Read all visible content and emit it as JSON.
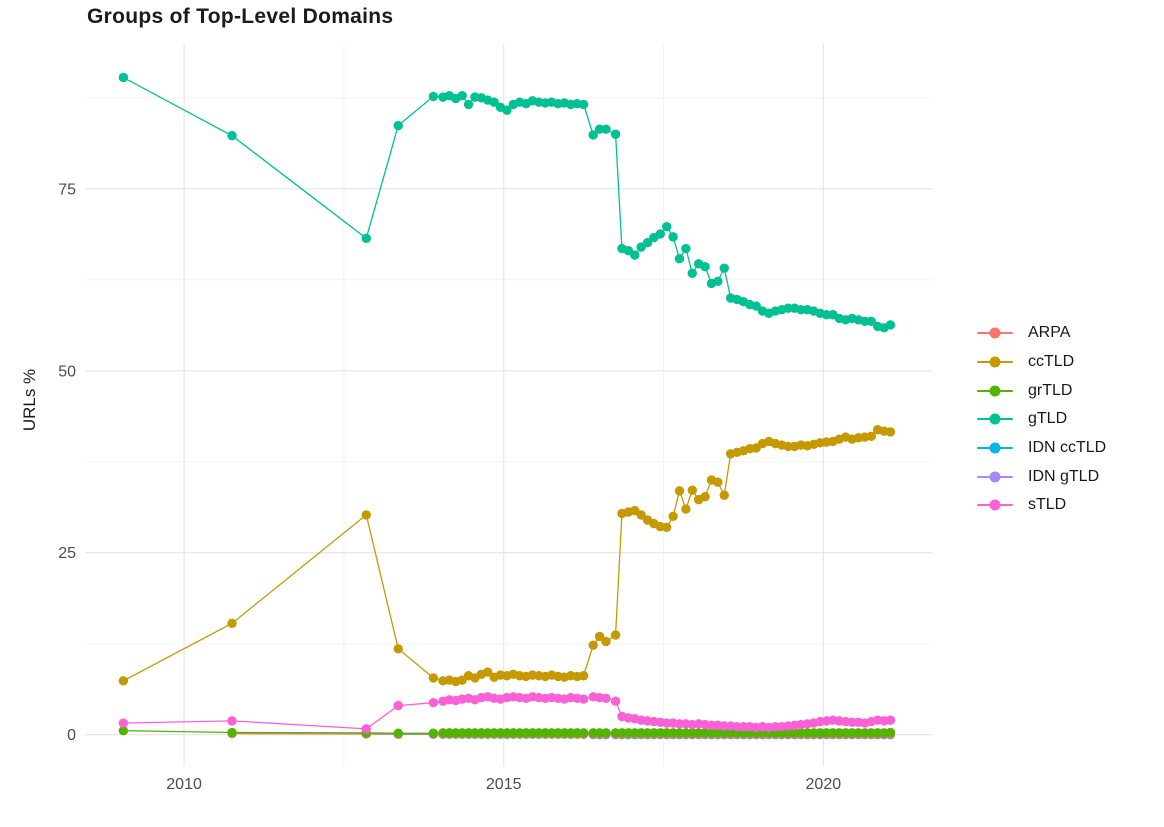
{
  "chart_data": {
    "type": "line",
    "title": "Groups of Top-Level Domains",
    "xlabel": "",
    "ylabel": "URLs %",
    "legend_position": "right",
    "grid": true,
    "x_range": [
      2008.45,
      2021.7
    ],
    "y_range": [
      -4.3,
      94.9
    ],
    "x_ticks": {
      "major": [
        2010,
        2015,
        2020
      ],
      "minor": [
        2012.5,
        2017.5
      ],
      "labels": [
        "2010",
        "2015",
        "2020"
      ]
    },
    "y_ticks": {
      "major": [
        0,
        25,
        50,
        75
      ],
      "minor": [
        12.5,
        37.5,
        62.5,
        87.5
      ],
      "labels": [
        "0",
        "25",
        "50",
        "75"
      ]
    },
    "grid_major_color": "#e6e6e6",
    "grid_minor_color": "#f0f0f0",
    "draw_order": [
      "IDN gTLD",
      "IDN ccTLD",
      "ARPA",
      "grTLD",
      "gTLD",
      "ccTLD",
      "sTLD"
    ],
    "series": [
      {
        "name": "ARPA",
        "color": "#F8766D",
        "x": [
          2010.75,
          2012.85,
          2013.35,
          2013.9,
          2014.05,
          2014.15,
          2014.25,
          2014.35,
          2014.45,
          2014.55,
          2014.65,
          2014.75,
          2014.85,
          2014.95,
          2015.05,
          2015.15,
          2015.25,
          2015.35,
          2015.45,
          2015.55,
          2015.65,
          2015.75,
          2015.85,
          2015.95,
          2016.05,
          2016.15,
          2016.25,
          2016.4,
          2016.5,
          2016.6,
          2016.75,
          2016.85,
          2016.95,
          2017.05,
          2017.15,
          2017.25,
          2017.35,
          2017.45,
          2017.55,
          2017.65,
          2017.75,
          2017.85,
          2017.95,
          2018.05,
          2018.15,
          2018.25,
          2018.35,
          2018.45,
          2018.55,
          2018.65,
          2018.75,
          2018.85,
          2018.95,
          2019.05,
          2019.15,
          2019.25,
          2019.35,
          2019.45,
          2019.55,
          2019.65,
          2019.75,
          2019.85,
          2019.95,
          2020.05,
          2020.15,
          2020.25,
          2020.35,
          2020.45,
          2020.55,
          2020.65,
          2020.75,
          2020.85,
          2020.95,
          2021.05
        ],
        "y": [
          0.15,
          0.1,
          0.1,
          0.1,
          0.1,
          0.1,
          0.1,
          0.1,
          0.1,
          0.1,
          0.1,
          0.1,
          0.1,
          0.1,
          0.1,
          0.1,
          0.1,
          0.1,
          0.1,
          0.1,
          0.1,
          0.1,
          0.1,
          0.1,
          0.1,
          0.1,
          0.1,
          0.1,
          0.1,
          0.1,
          0.1,
          0.1,
          0.1,
          0.1,
          0.1,
          0.1,
          0.1,
          0.1,
          0.1,
          0.1,
          0.1,
          0.1,
          0.1,
          0.1,
          0.1,
          0.1,
          0.1,
          0.1,
          0.1,
          0.1,
          0.1,
          0.1,
          0.1,
          0.1,
          0.1,
          0.1,
          0.1,
          0.1,
          0.1,
          0.1,
          0.1,
          0.1,
          0.1,
          0.1,
          0.1,
          0.1,
          0.1,
          0.1,
          0.1,
          0.1,
          0.1,
          0.1,
          0.1,
          0.1
        ]
      },
      {
        "name": "ccTLD",
        "color": "#C49A00",
        "x": [
          2009.05,
          2010.75,
          2012.85,
          2013.35,
          2013.9,
          2014.05,
          2014.15,
          2014.25,
          2014.35,
          2014.45,
          2014.55,
          2014.65,
          2014.75,
          2014.85,
          2014.95,
          2015.05,
          2015.15,
          2015.25,
          2015.35,
          2015.45,
          2015.55,
          2015.65,
          2015.75,
          2015.85,
          2015.95,
          2016.05,
          2016.15,
          2016.25,
          2016.4,
          2016.5,
          2016.6,
          2016.75,
          2016.85,
          2016.95,
          2017.05,
          2017.15,
          2017.25,
          2017.35,
          2017.45,
          2017.55,
          2017.65,
          2017.75,
          2017.85,
          2017.95,
          2018.05,
          2018.15,
          2018.25,
          2018.35,
          2018.45,
          2018.55,
          2018.65,
          2018.75,
          2018.85,
          2018.95,
          2019.05,
          2019.15,
          2019.25,
          2019.35,
          2019.45,
          2019.55,
          2019.65,
          2019.75,
          2019.85,
          2019.95,
          2020.05,
          2020.15,
          2020.25,
          2020.35,
          2020.45,
          2020.55,
          2020.65,
          2020.75,
          2020.85,
          2020.95,
          2021.05
        ],
        "y": [
          7.4,
          15.3,
          30.2,
          11.8,
          7.8,
          7.4,
          7.5,
          7.3,
          7.5,
          8.1,
          7.8,
          8.3,
          8.6,
          7.9,
          8.2,
          8.1,
          8.3,
          8.1,
          8.0,
          8.2,
          8.1,
          8.0,
          8.2,
          8.0,
          7.9,
          8.1,
          8.0,
          8.1,
          12.3,
          13.5,
          12.8,
          13.7,
          30.4,
          30.6,
          30.8,
          30.2,
          29.5,
          29.0,
          28.6,
          28.5,
          30.0,
          33.5,
          31.0,
          33.6,
          32.3,
          32.7,
          35.0,
          34.7,
          32.9,
          38.6,
          38.8,
          39.0,
          39.3,
          39.4,
          40.0,
          40.3,
          40.0,
          39.8,
          39.6,
          39.6,
          39.8,
          39.7,
          39.9,
          40.1,
          40.2,
          40.3,
          40.6,
          40.9,
          40.6,
          40.8,
          40.9,
          41.0,
          41.9,
          41.7,
          41.6
        ]
      },
      {
        "name": "grTLD",
        "color": "#53B400",
        "x": [
          2009.05,
          2010.75,
          2012.85,
          2013.35,
          2013.9,
          2014.05,
          2014.15,
          2014.25,
          2014.35,
          2014.45,
          2014.55,
          2014.65,
          2014.75,
          2014.85,
          2014.95,
          2015.05,
          2015.15,
          2015.25,
          2015.35,
          2015.45,
          2015.55,
          2015.65,
          2015.75,
          2015.85,
          2015.95,
          2016.05,
          2016.15,
          2016.25,
          2016.4,
          2016.5,
          2016.6,
          2016.75,
          2016.85,
          2016.95,
          2017.05,
          2017.15,
          2017.25,
          2017.35,
          2017.45,
          2017.55,
          2017.65,
          2017.75,
          2017.85,
          2017.95,
          2018.05,
          2018.15,
          2018.25,
          2018.35,
          2018.45,
          2018.55,
          2018.65,
          2018.75,
          2018.85,
          2018.95,
          2019.05,
          2019.15,
          2019.25,
          2019.35,
          2019.45,
          2019.55,
          2019.65,
          2019.75,
          2019.85,
          2019.95,
          2020.05,
          2020.15,
          2020.25,
          2020.35,
          2020.45,
          2020.55,
          2020.65,
          2020.75,
          2020.85,
          2020.95,
          2021.05
        ],
        "y": [
          0.55,
          0.3,
          0.25,
          0.2,
          0.2,
          0.25,
          0.25,
          0.25,
          0.25,
          0.25,
          0.25,
          0.25,
          0.25,
          0.25,
          0.25,
          0.25,
          0.25,
          0.25,
          0.25,
          0.25,
          0.25,
          0.25,
          0.25,
          0.25,
          0.25,
          0.25,
          0.25,
          0.25,
          0.25,
          0.25,
          0.25,
          0.25,
          0.25,
          0.25,
          0.25,
          0.25,
          0.25,
          0.25,
          0.25,
          0.25,
          0.25,
          0.25,
          0.25,
          0.25,
          0.25,
          0.25,
          0.25,
          0.25,
          0.25,
          0.25,
          0.25,
          0.25,
          0.25,
          0.25,
          0.25,
          0.25,
          0.25,
          0.25,
          0.25,
          0.25,
          0.25,
          0.25,
          0.25,
          0.25,
          0.25,
          0.25,
          0.25,
          0.25,
          0.25,
          0.25,
          0.25,
          0.25,
          0.25,
          0.25,
          0.3
        ]
      },
      {
        "name": "gTLD",
        "color": "#00C094",
        "x": [
          2009.05,
          2010.75,
          2012.85,
          2013.35,
          2013.9,
          2014.05,
          2014.15,
          2014.25,
          2014.35,
          2014.45,
          2014.55,
          2014.65,
          2014.75,
          2014.85,
          2014.95,
          2015.05,
          2015.15,
          2015.25,
          2015.35,
          2015.45,
          2015.55,
          2015.65,
          2015.75,
          2015.85,
          2015.95,
          2016.05,
          2016.15,
          2016.25,
          2016.4,
          2016.5,
          2016.6,
          2016.75,
          2016.85,
          2016.95,
          2017.05,
          2017.15,
          2017.25,
          2017.35,
          2017.45,
          2017.55,
          2017.65,
          2017.75,
          2017.85,
          2017.95,
          2018.05,
          2018.15,
          2018.25,
          2018.35,
          2018.45,
          2018.55,
          2018.65,
          2018.75,
          2018.85,
          2018.95,
          2019.05,
          2019.15,
          2019.25,
          2019.35,
          2019.45,
          2019.55,
          2019.65,
          2019.75,
          2019.85,
          2019.95,
          2020.05,
          2020.15,
          2020.25,
          2020.35,
          2020.45,
          2020.55,
          2020.65,
          2020.75,
          2020.85,
          2020.95,
          2021.05
        ],
        "y": [
          90.3,
          82.3,
          68.2,
          83.7,
          87.7,
          87.6,
          87.8,
          87.4,
          87.8,
          86.6,
          87.6,
          87.5,
          87.2,
          86.9,
          86.2,
          85.8,
          86.6,
          86.9,
          86.7,
          87.1,
          86.9,
          86.8,
          86.9,
          86.7,
          86.8,
          86.6,
          86.7,
          86.6,
          82.4,
          83.2,
          83.2,
          82.5,
          66.8,
          66.5,
          65.9,
          67.0,
          67.6,
          68.3,
          68.8,
          69.8,
          68.4,
          65.4,
          66.8,
          63.4,
          64.7,
          64.3,
          62.0,
          62.3,
          64.1,
          60.0,
          59.8,
          59.5,
          59.1,
          58.9,
          58.2,
          57.9,
          58.2,
          58.4,
          58.6,
          58.6,
          58.4,
          58.4,
          58.2,
          57.9,
          57.7,
          57.7,
          57.2,
          57.0,
          57.2,
          57.0,
          56.8,
          56.8,
          56.1,
          55.9,
          56.3
        ]
      },
      {
        "name": "IDN ccTLD",
        "color": "#00B6EB",
        "x": [
          2012.85,
          2013.35,
          2013.9,
          2014.05,
          2014.15,
          2014.25,
          2014.35,
          2014.45,
          2014.55,
          2014.65,
          2014.75,
          2014.85,
          2014.95,
          2015.05,
          2015.15,
          2015.25,
          2015.35,
          2015.45,
          2015.55,
          2015.65,
          2015.75,
          2015.85,
          2015.95,
          2016.05,
          2016.15,
          2016.25,
          2016.4,
          2016.5,
          2016.6,
          2016.75,
          2016.85,
          2016.95,
          2017.05,
          2017.15,
          2017.25,
          2017.35,
          2017.45,
          2017.55,
          2017.65,
          2017.75,
          2017.85,
          2017.95,
          2018.05,
          2018.15,
          2018.25,
          2018.35,
          2018.45,
          2018.55,
          2018.65,
          2018.75,
          2018.85,
          2018.95,
          2019.05,
          2019.15,
          2019.25,
          2019.35,
          2019.45,
          2019.55,
          2019.65,
          2019.75,
          2019.85,
          2019.95,
          2020.05,
          2020.15,
          2020.25,
          2020.35,
          2020.45,
          2020.55,
          2020.65,
          2020.75,
          2020.85,
          2020.95,
          2021.05
        ],
        "y": [
          0.1,
          0.05,
          0.05,
          0.05,
          0.05,
          0.05,
          0.05,
          0.05,
          0.05,
          0.05,
          0.05,
          0.05,
          0.05,
          0.05,
          0.05,
          0.05,
          0.05,
          0.05,
          0.05,
          0.05,
          0.05,
          0.05,
          0.05,
          0.05,
          0.05,
          0.05,
          0.05,
          0.05,
          0.05,
          0.05,
          0.05,
          0.05,
          0.05,
          0.05,
          0.05,
          0.05,
          0.05,
          0.05,
          0.05,
          0.05,
          0.05,
          0.05,
          0.05,
          0.05,
          0.05,
          0.05,
          0.05,
          0.05,
          0.05,
          0.05,
          0.05,
          0.05,
          0.05,
          0.05,
          0.05,
          0.05,
          0.05,
          0.05,
          0.05,
          0.05,
          0.05,
          0.05,
          0.05,
          0.05,
          0.05,
          0.05,
          0.05,
          0.05,
          0.05,
          0.05,
          0.05,
          0.05,
          0.05
        ]
      },
      {
        "name": "IDN gTLD",
        "color": "#A58AFF",
        "x": [
          2016.4,
          2016.5,
          2016.6,
          2016.75,
          2016.85,
          2016.95,
          2017.05,
          2017.15,
          2017.25,
          2017.35,
          2017.45,
          2017.55,
          2017.65,
          2017.75,
          2017.85,
          2017.95,
          2018.05,
          2018.15,
          2018.25,
          2018.35,
          2018.45,
          2018.55,
          2018.65,
          2018.75,
          2018.85,
          2018.95,
          2019.05,
          2019.15,
          2019.25,
          2019.35,
          2019.45,
          2019.55,
          2019.65,
          2019.75,
          2019.85,
          2019.95,
          2020.05,
          2020.15,
          2020.25,
          2020.35,
          2020.45,
          2020.55,
          2020.65,
          2020.75,
          2020.85,
          2020.95,
          2021.05
        ],
        "y": [
          0,
          0,
          0,
          0,
          0,
          0,
          0,
          0,
          0,
          0,
          0,
          0,
          0,
          0,
          0,
          0,
          0,
          0,
          0,
          0,
          0,
          0,
          0,
          0,
          0,
          0,
          0,
          0,
          0,
          0,
          0,
          0,
          0,
          0,
          0,
          0,
          0,
          0,
          0,
          0,
          0,
          0,
          0,
          0,
          0,
          0,
          0
        ]
      },
      {
        "name": "sTLD",
        "color": "#FB61D7",
        "x": [
          2009.05,
          2010.75,
          2012.85,
          2013.35,
          2013.9,
          2014.05,
          2014.15,
          2014.25,
          2014.35,
          2014.45,
          2014.55,
          2014.65,
          2014.75,
          2014.85,
          2014.95,
          2015.05,
          2015.15,
          2015.25,
          2015.35,
          2015.45,
          2015.55,
          2015.65,
          2015.75,
          2015.85,
          2015.95,
          2016.05,
          2016.15,
          2016.25,
          2016.4,
          2016.5,
          2016.6,
          2016.75,
          2016.85,
          2016.95,
          2017.05,
          2017.15,
          2017.25,
          2017.35,
          2017.45,
          2017.55,
          2017.65,
          2017.75,
          2017.85,
          2017.95,
          2018.05,
          2018.15,
          2018.25,
          2018.35,
          2018.45,
          2018.55,
          2018.65,
          2018.75,
          2018.85,
          2018.95,
          2019.05,
          2019.15,
          2019.25,
          2019.35,
          2019.45,
          2019.55,
          2019.65,
          2019.75,
          2019.85,
          2019.95,
          2020.05,
          2020.15,
          2020.25,
          2020.35,
          2020.45,
          2020.55,
          2020.65,
          2020.75,
          2020.85,
          2020.95,
          2021.05
        ],
        "y": [
          1.6,
          1.9,
          0.8,
          4.0,
          4.4,
          4.6,
          4.8,
          4.7,
          4.9,
          5.0,
          4.8,
          5.1,
          5.2,
          5.0,
          4.9,
          5.1,
          5.2,
          5.1,
          5.0,
          5.2,
          5.1,
          5.0,
          5.1,
          5.0,
          4.9,
          5.1,
          5.0,
          4.9,
          5.2,
          5.1,
          5.0,
          4.6,
          2.5,
          2.3,
          2.2,
          2.0,
          1.9,
          1.8,
          1.7,
          1.6,
          1.6,
          1.5,
          1.5,
          1.4,
          1.5,
          1.4,
          1.3,
          1.3,
          1.2,
          1.2,
          1.1,
          1.1,
          1.1,
          1.0,
          1.1,
          1.0,
          1.1,
          1.1,
          1.2,
          1.3,
          1.4,
          1.5,
          1.6,
          1.8,
          1.9,
          2.0,
          1.9,
          1.8,
          1.7,
          1.7,
          1.6,
          1.8,
          2.0,
          1.9,
          2.0
        ]
      }
    ]
  }
}
